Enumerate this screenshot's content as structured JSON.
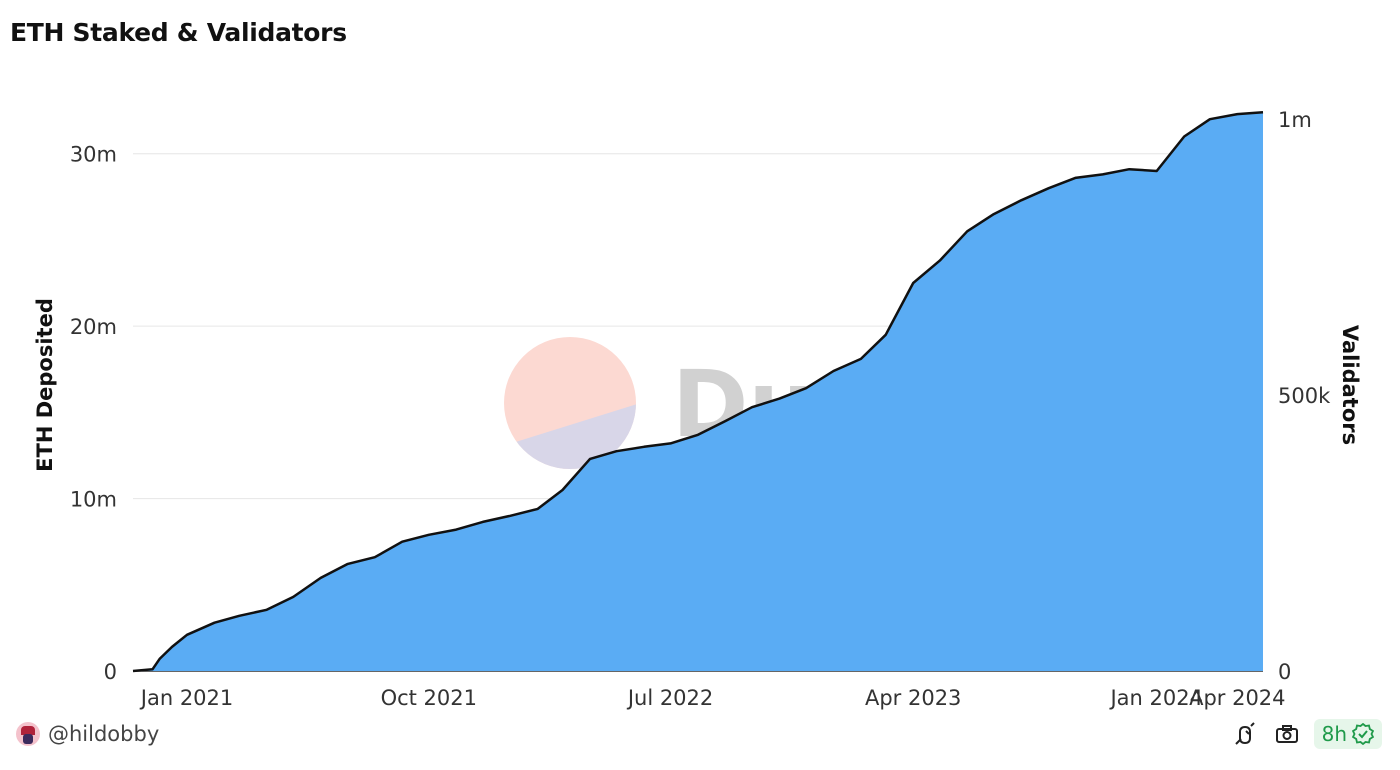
{
  "title": "ETH Staked & Validators",
  "footer": {
    "username": "@hildobby",
    "refresh_label": "8h"
  },
  "watermark": "Dune",
  "icons": [
    "avatar",
    "bug-icon",
    "camera-icon",
    "check-circle-icon"
  ],
  "colors": {
    "area_fill": "#5aacf4",
    "line": "#111111",
    "grid": "#e6e6e6",
    "badge_text": "#1f9a4a",
    "badge_bg": "#e6f6ea"
  },
  "chart_data": {
    "type": "area",
    "title": "ETH Staked & Validators",
    "xlabel": "",
    "ylabel": "ETH Deposited",
    "y2label": "Validators",
    "ylim": [
      0,
      33000000
    ],
    "y2lim": [
      0,
      1031250
    ],
    "yticks": [
      0,
      10000000,
      20000000,
      30000000
    ],
    "ytick_labels": [
      "0",
      "10m",
      "20m",
      "30m"
    ],
    "y2ticks": [
      0,
      500000,
      1000000
    ],
    "y2tick_labels": [
      "0",
      "500k",
      "1m"
    ],
    "xlim": [
      "2020-11-01",
      "2024-04-30"
    ],
    "xticks": [
      "2021-01-01",
      "2021-10-01",
      "2022-07-01",
      "2023-04-01",
      "2024-01-01",
      "2024-04-01"
    ],
    "xtick_labels": [
      "Jan 2021",
      "Oct 2021",
      "Jul 2022",
      "Apr 2023",
      "Jan 2024",
      "Apr 2024"
    ],
    "grid": true,
    "series": [
      {
        "name": "ETH Deposited",
        "x": [
          "2020-11-01",
          "2020-11-23",
          "2020-12-01",
          "2020-12-15",
          "2021-01-01",
          "2021-02-01",
          "2021-03-01",
          "2021-04-01",
          "2021-05-01",
          "2021-06-01",
          "2021-07-01",
          "2021-08-01",
          "2021-09-01",
          "2021-10-01",
          "2021-11-01",
          "2021-12-01",
          "2022-01-01",
          "2022-02-01",
          "2022-03-01",
          "2022-04-01",
          "2022-05-01",
          "2022-06-01",
          "2022-07-01",
          "2022-08-01",
          "2022-09-01",
          "2022-10-01",
          "2022-11-01",
          "2022-12-01",
          "2023-01-01",
          "2023-02-01",
          "2023-03-01",
          "2023-04-01",
          "2023-05-01",
          "2023-06-01",
          "2023-07-01",
          "2023-08-01",
          "2023-09-01",
          "2023-10-01",
          "2023-11-01",
          "2023-12-01",
          "2024-01-01",
          "2024-02-01",
          "2024-03-01",
          "2024-04-01",
          "2024-04-30"
        ],
        "values": [
          0,
          100000,
          700000,
          1400000,
          2100000,
          2800000,
          3200000,
          3550000,
          4300000,
          5400000,
          6200000,
          6600000,
          7500000,
          7900000,
          8200000,
          8650000,
          9000000,
          9400000,
          10500000,
          12300000,
          12750000,
          13000000,
          13200000,
          13700000,
          14500000,
          15300000,
          15800000,
          16400000,
          17400000,
          18100000,
          19500000,
          22500000,
          23800000,
          25500000,
          26500000,
          27300000,
          28000000,
          28600000,
          28800000,
          29100000,
          29000000,
          31000000,
          32000000,
          32300000,
          32400000
        ]
      }
    ]
  }
}
